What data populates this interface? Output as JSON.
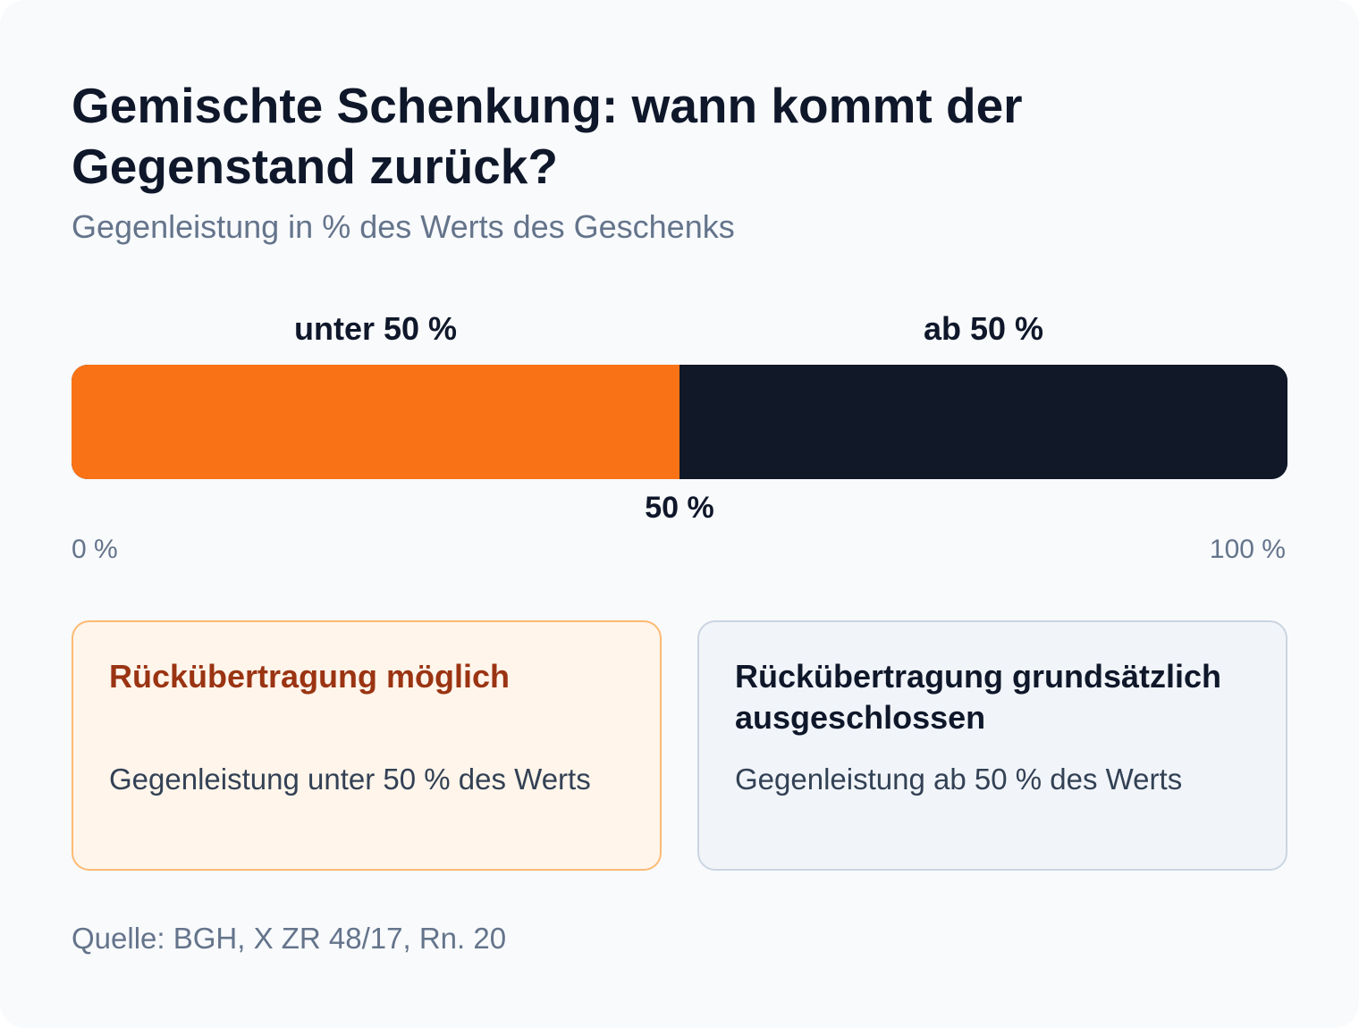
{
  "title": "Gemischte Schenkung: wann kommt der Gegenstand zurück?",
  "subtitle": "Gegenleistung in % des Werts des Geschenks",
  "scale": {
    "min_label": "0 %",
    "max_label": "100 %",
    "min": 0,
    "max": 100,
    "threshold_value": 50,
    "threshold_label": "50 %"
  },
  "segments": [
    {
      "label": "unter 50 %",
      "from": 0,
      "to": 50,
      "color": "#f97316"
    },
    {
      "label": "ab 50 %",
      "from": 50,
      "to": 100,
      "color": "#111827"
    }
  ],
  "cards": [
    {
      "title": "Rückübertragung möglich",
      "text": "Gegenleistung unter 50 % des Werts"
    },
    {
      "title": "Rückübertragung grundsätzlich ausgeschlossen",
      "text": "Gegenleistung ab 50 % des Werts"
    }
  ],
  "source": "Quelle: BGH, X ZR 48/17, Rn. 20"
}
